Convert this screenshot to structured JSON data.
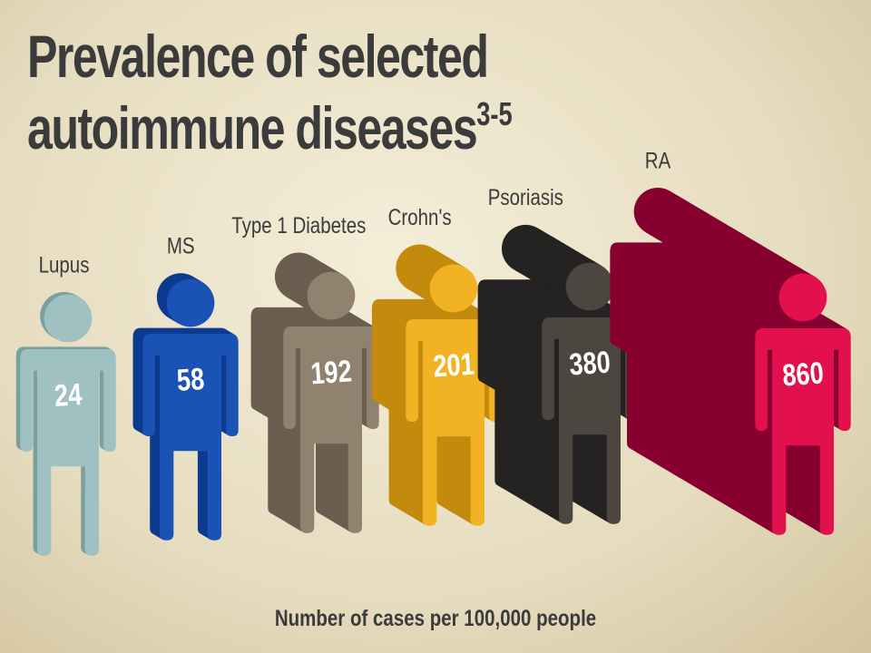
{
  "chart_data": {
    "type": "pictograph",
    "title": "Prevalence of selected autoimmune diseases",
    "title_superscript": "3-5",
    "categories": [
      "Lupus",
      "MS",
      "Type 1 Diabetes",
      "Crohn's",
      "Psoriasis",
      "RA"
    ],
    "values": [
      24,
      58,
      192,
      201,
      380,
      860
    ],
    "colors": [
      "#9fc1c1",
      "#1a52b6",
      "#91816f",
      "#f1b323",
      "#4c4641",
      "#e2104c"
    ],
    "shadow_colors": [
      "#78a0a0",
      "#0c3a8e",
      "#6b5d4f",
      "#c48a0e",
      "#252322",
      "#870030"
    ],
    "x_label": "Number of cases per 100,000 people"
  }
}
